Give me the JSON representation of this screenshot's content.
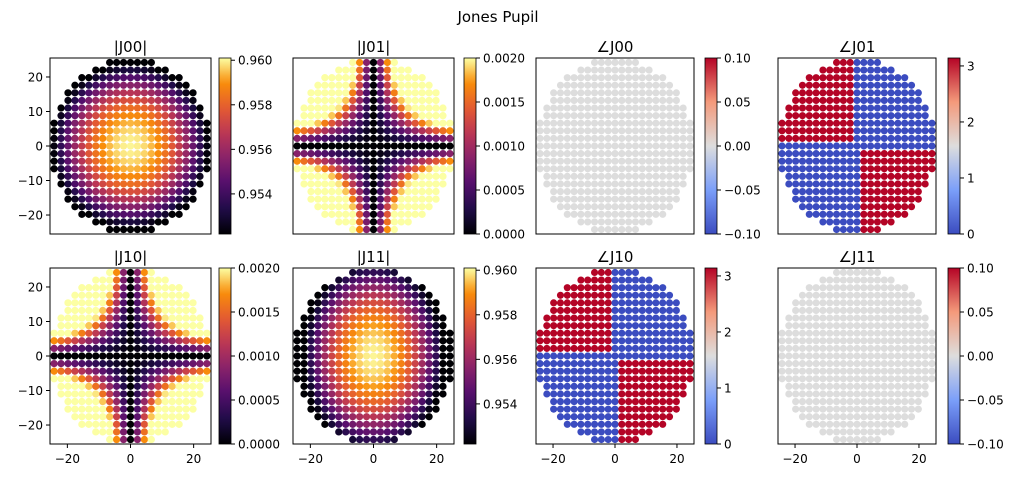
{
  "figure_title": "Jones Pupil",
  "chart_data": [
    {
      "type": "scatter",
      "title": "|J00|",
      "field": "abs_j00",
      "xlim": [
        -25.5,
        25.5
      ],
      "ylim": [
        -25.5,
        25.5
      ],
      "xticks": [
        -20,
        0,
        20
      ],
      "yticks": [
        -20,
        -10,
        0,
        10,
        20
      ],
      "show_xticks": false,
      "show_yticks": true,
      "colormap": "inferno",
      "clim": [
        0.9522,
        0.9601
      ],
      "colorbar_ticks": [
        "0.954",
        "0.956",
        "0.958",
        "0.960"
      ],
      "colorbar_values": [
        0.954,
        0.956,
        0.958,
        0.96
      ],
      "grid": "circular pupil of 23 x 23 samples, spacing 2.2, center maximum 0.96"
    },
    {
      "type": "scatter",
      "title": "|J01|",
      "field": "abs_j01",
      "xlim": [
        -25.5,
        25.5
      ],
      "ylim": [
        -25.5,
        25.5
      ],
      "xticks": [
        -20,
        0,
        20
      ],
      "yticks": [
        -20,
        -10,
        0,
        10,
        20
      ],
      "show_xticks": false,
      "show_yticks": false,
      "colormap": "inferno",
      "clim": [
        0,
        0.002
      ],
      "colorbar_ticks": [
        "0.0000",
        "0.0005",
        "0.0010",
        "0.0015",
        "0.0020"
      ],
      "colorbar_values": [
        0,
        0.0005,
        0.001,
        0.0015,
        0.002
      ],
      "grid": "zero along x = 0 and y = 0, rising to 0.002 at the diagonal edge"
    },
    {
      "type": "scatter",
      "title": "∠J00",
      "field": "phase_j00",
      "xlim": [
        -25.5,
        25.5
      ],
      "ylim": [
        -25.5,
        25.5
      ],
      "xticks": [
        -20,
        0,
        20
      ],
      "yticks": [
        -20,
        -10,
        0,
        10,
        20
      ],
      "show_xticks": false,
      "show_yticks": false,
      "colormap": "coolwarm",
      "clim": [
        -0.1,
        0.1
      ],
      "colorbar_ticks": [
        "−0.10",
        "−0.05",
        "0.00",
        "0.05",
        "0.10"
      ],
      "colorbar_values": [
        -0.1,
        -0.05,
        0,
        0.05,
        0.1
      ],
      "grid": "constant 0"
    },
    {
      "type": "scatter",
      "title": "∠J01",
      "field": "phase_j01",
      "xlim": [
        -25.5,
        25.5
      ],
      "ylim": [
        -25.5,
        25.5
      ],
      "xticks": [
        -20,
        0,
        20
      ],
      "yticks": [
        -20,
        -10,
        0,
        10,
        20
      ],
      "show_xticks": false,
      "show_yticks": false,
      "colormap": "coolwarm",
      "clim": [
        0,
        3.1416
      ],
      "colorbar_ticks": [
        "0",
        "1",
        "2",
        "3"
      ],
      "colorbar_values": [
        0,
        1,
        2,
        3
      ],
      "grid": "3.14 in upper-left and lower-right quadrants, 0 elsewhere"
    },
    {
      "type": "scatter",
      "title": "|J10|",
      "field": "abs_j01",
      "xlim": [
        -25.5,
        25.5
      ],
      "ylim": [
        -25.5,
        25.5
      ],
      "xticks": [
        -20,
        0,
        20
      ],
      "yticks": [
        -20,
        -10,
        0,
        10,
        20
      ],
      "show_xticks": true,
      "show_yticks": true,
      "colormap": "inferno",
      "clim": [
        0,
        0.002
      ],
      "colorbar_ticks": [
        "0.0000",
        "0.0005",
        "0.0010",
        "0.0015",
        "0.0020"
      ],
      "colorbar_values": [
        0,
        0.0005,
        0.001,
        0.0015,
        0.002
      ],
      "grid": "zero along x = 0 and y = 0, rising to 0.002 at the diagonal edge"
    },
    {
      "type": "scatter",
      "title": "|J11|",
      "field": "abs_j11",
      "xlim": [
        -25.5,
        25.5
      ],
      "ylim": [
        -25.5,
        25.5
      ],
      "xticks": [
        -20,
        0,
        20
      ],
      "yticks": [
        -20,
        -10,
        0,
        10,
        20
      ],
      "show_xticks": true,
      "show_yticks": false,
      "colormap": "inferno",
      "clim": [
        0.9522,
        0.9601
      ],
      "colorbar_ticks": [
        "0.954",
        "0.956",
        "0.958",
        "0.960"
      ],
      "colorbar_values": [
        0.954,
        0.956,
        0.958,
        0.96
      ],
      "grid": "circular pupil, center maximum 0.96, falling faster along x"
    },
    {
      "type": "scatter",
      "title": "∠J10",
      "field": "phase_j01",
      "xlim": [
        -25.5,
        25.5
      ],
      "ylim": [
        -25.5,
        25.5
      ],
      "xticks": [
        -20,
        0,
        20
      ],
      "yticks": [
        -20,
        -10,
        0,
        10,
        20
      ],
      "show_xticks": true,
      "show_yticks": false,
      "colormap": "coolwarm",
      "clim": [
        0,
        3.1416
      ],
      "colorbar_ticks": [
        "0",
        "1",
        "2",
        "3"
      ],
      "colorbar_values": [
        0,
        1,
        2,
        3
      ],
      "grid": "3.14 in upper-left and lower-right quadrants, 0 elsewhere"
    },
    {
      "type": "scatter",
      "title": "∠J11",
      "field": "phase_j00",
      "xlim": [
        -25.5,
        25.5
      ],
      "ylim": [
        -25.5,
        25.5
      ],
      "xticks": [
        -20,
        0,
        20
      ],
      "yticks": [
        -20,
        -10,
        0,
        10,
        20
      ],
      "show_xticks": true,
      "show_yticks": false,
      "colormap": "coolwarm",
      "clim": [
        -0.1,
        0.1
      ],
      "colorbar_ticks": [
        "−0.10",
        "−0.05",
        "0.00",
        "0.05",
        "0.10"
      ],
      "colorbar_values": [
        -0.1,
        -0.05,
        0,
        0.05,
        0.1
      ],
      "grid": "constant 0"
    }
  ]
}
